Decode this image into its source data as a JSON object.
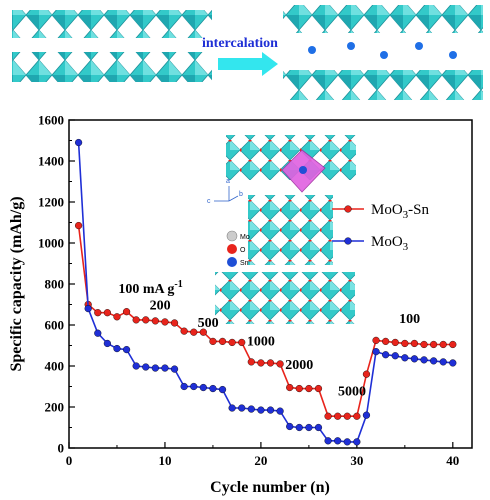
{
  "header": {
    "arrow_label": "intercalation"
  },
  "inset": {
    "legend": [
      {
        "label": "Mo",
        "color": "#cccccc"
      },
      {
        "label": "O",
        "color": "#e8241c"
      },
      {
        "label": "Sn",
        "color": "#1f4fd6"
      }
    ],
    "axes": {
      "a": "a",
      "b": "b",
      "c": "c"
    }
  },
  "colors": {
    "crystal": "#33c9c9",
    "crystal_dark": "#1b9aa0",
    "sn_polyhedron": "#e060e0",
    "arrow": "#33e6ee",
    "ion": "#1f6fe6"
  },
  "chart_data": {
    "type": "line",
    "xlabel": "Cycle number (n)",
    "ylabel": "Specific capacity (mAh/g)",
    "xlim": [
      0,
      42
    ],
    "ylim": [
      0,
      1600
    ],
    "xticks": [
      0,
      10,
      20,
      30,
      40
    ],
    "yticks": [
      0,
      200,
      400,
      600,
      800,
      1000,
      1200,
      1400,
      1600
    ],
    "legend_position": "right",
    "grid": false,
    "series": [
      {
        "name": "MoO3-Sn",
        "name_main": "MoO",
        "name_sub": "3",
        "name_tail": "-Sn",
        "color": "#e8241c",
        "x": [
          1,
          2,
          3,
          4,
          5,
          6,
          7,
          8,
          9,
          10,
          11,
          12,
          13,
          14,
          15,
          16,
          17,
          18,
          19,
          20,
          21,
          22,
          23,
          24,
          25,
          26,
          27,
          28,
          29,
          30,
          31,
          32,
          33,
          34,
          35,
          36,
          37,
          38,
          39,
          40
        ],
        "y": [
          1085,
          700,
          660,
          660,
          640,
          665,
          625,
          625,
          620,
          615,
          610,
          570,
          565,
          565,
          520,
          520,
          515,
          515,
          420,
          415,
          415,
          410,
          295,
          290,
          290,
          290,
          155,
          155,
          155,
          155,
          360,
          525,
          520,
          515,
          510,
          510,
          505,
          505,
          505,
          505
        ]
      },
      {
        "name": "MoO3",
        "name_main": "MoO",
        "name_sub": "3",
        "name_tail": "",
        "color": "#1f2fd6",
        "x": [
          1,
          2,
          3,
          4,
          5,
          6,
          7,
          8,
          9,
          10,
          11,
          12,
          13,
          14,
          15,
          16,
          17,
          18,
          19,
          20,
          21,
          22,
          23,
          24,
          25,
          26,
          27,
          28,
          29,
          30,
          31,
          32,
          33,
          34,
          35,
          36,
          37,
          38,
          39,
          40
        ],
        "y": [
          1490,
          680,
          560,
          510,
          485,
          480,
          400,
          395,
          390,
          390,
          385,
          300,
          300,
          295,
          290,
          285,
          195,
          195,
          190,
          185,
          185,
          180,
          105,
          100,
          100,
          100,
          35,
          35,
          30,
          30,
          160,
          470,
          455,
          450,
          440,
          435,
          430,
          425,
          420,
          415
        ]
      }
    ],
    "annotations": [
      {
        "text_main": "100 mA g",
        "text_sup": "-1",
        "x": 8.5,
        "y": 755
      },
      {
        "text_main": "200",
        "text_sup": "",
        "x": 9.5,
        "y": 675
      },
      {
        "text_main": "500",
        "text_sup": "",
        "x": 14.5,
        "y": 590
      },
      {
        "text_main": "1000",
        "text_sup": "",
        "x": 20.0,
        "y": 500
      },
      {
        "text_main": "2000",
        "text_sup": "",
        "x": 24.0,
        "y": 385
      },
      {
        "text_main": "5000",
        "text_sup": "",
        "x": 29.5,
        "y": 255
      },
      {
        "text_main": "100",
        "text_sup": "",
        "x": 35.5,
        "y": 610
      }
    ]
  }
}
